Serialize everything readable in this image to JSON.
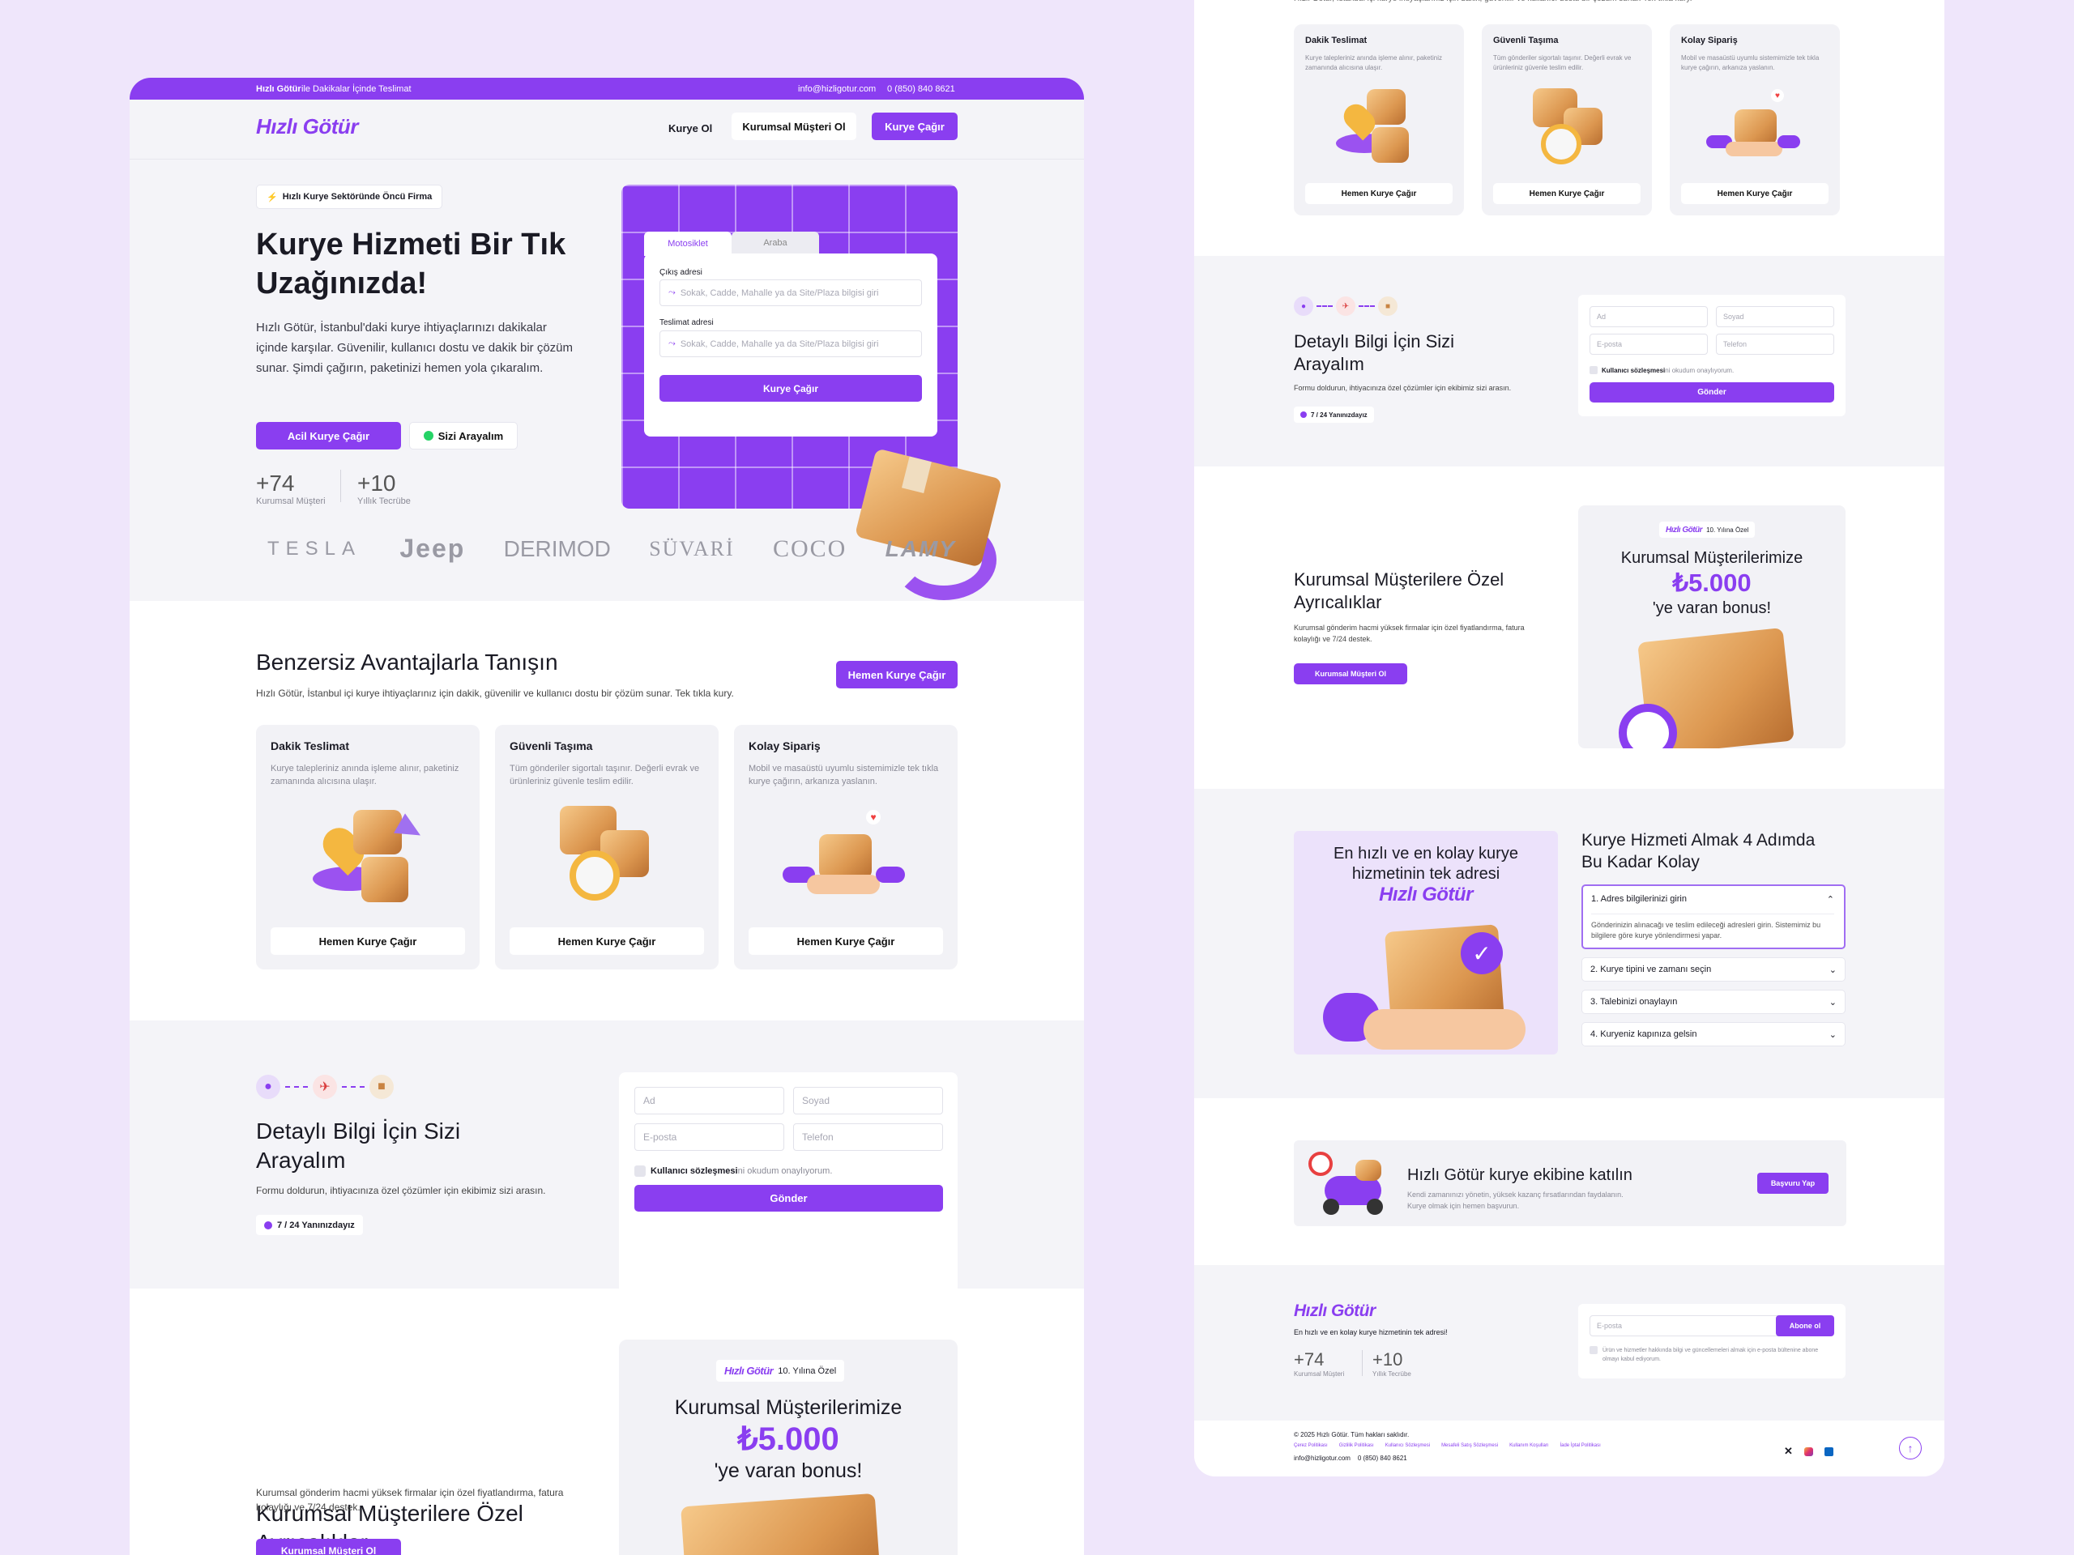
{
  "topbar": {
    "brand": "Hızlı Götür",
    "tagline": "ile Dakikalar İçinde Teslimat",
    "email": "info@hizligotur.com",
    "phone": "0 (850) 840 8621"
  },
  "nav": {
    "logo": "Hızlı Götür",
    "kurye_ol": "Kurye Ol",
    "kurumsal": "Kurumsal Müşteri Ol",
    "cta": "Kurye Çağır"
  },
  "hero": {
    "badge": "Hızlı Kurye Sektöründe Öncü Firma",
    "title_line1": "Kurye Hizmeti Bir Tık",
    "title_line2": "Uzağınızda!",
    "desc": "Hızlı Götür, İstanbul'daki kurye ihtiyaçlarınızı dakikalar içinde karşılar. Güvenilir, kullanıcı dostu ve dakik bir çözüm sunar. Şimdi çağırın, paketinizi hemen yola çıkaralım.",
    "btn_primary": "Acil Kurye Çağır",
    "btn_secondary": "Sizi Arayalım",
    "stat1_value": "+74",
    "stat1_label": "Kurumsal Müşteri",
    "stat2_value": "+10",
    "stat2_label": "Yıllık Tecrübe"
  },
  "form": {
    "tab1": "Motosiklet",
    "tab2": "Araba",
    "pickup_label": "Çıkış adresi",
    "pickup_placeholder": "Sokak, Cadde, Mahalle ya da Site/Plaza bilgisi giri",
    "delivery_label": "Teslimat adresi",
    "delivery_placeholder": "Sokak, Cadde, Mahalle ya da Site/Plaza bilgisi giri",
    "submit": "Kurye Çağır"
  },
  "brands": [
    "TESLA",
    "Jeep",
    "DERIMOD",
    "SÜVARİ",
    "COCO",
    "LAMY"
  ],
  "advantages": {
    "title": "Benzersiz Avantajlarla Tanışın",
    "desc": "Hızlı Götür, İstanbul içi kurye ihtiyaçlarınız için dakik, güvenilir ve kullanıcı dostu bir çözüm sunar. Tek tıkla kury.",
    "cta": "Hemen Kurye Çağır",
    "cards": [
      {
        "title": "Dakik Teslimat",
        "desc": "Kurye talepleriniz anında işleme alınır, paketiniz zamanında alıcısına ulaşır.",
        "btn": "Hemen Kurye Çağır"
      },
      {
        "title": "Güvenli Taşıma",
        "desc": "Tüm gönderiler sigortalı taşınır. Değerli evrak ve ürünleriniz güvenle teslim edilir.",
        "btn": "Hemen Kurye Çağır"
      },
      {
        "title": "Kolay Sipariş",
        "desc": "Mobil ve masaüstü uyumlu sistemimizle tek tıkla kurye çağırın, arkanıza yaslanın.",
        "btn": "Hemen Kurye Çağır"
      }
    ]
  },
  "contact": {
    "title_line1": "Detaylı Bilgi İçin Sizi",
    "title_line2": "Arayalım",
    "desc": "Formu doldurun, ihtiyacınıza özel çözümler için ekibimiz sizi arasın.",
    "badge": "7 / 24 Yanınızdayız",
    "ad": "Ad",
    "soyad": "Soyad",
    "eposta": "E-posta",
    "telefon": "Telefon",
    "agreement_bold": "Kullanıcı sözleşmesi",
    "agreement_rest": "ni okudum onaylıyorum.",
    "submit": "Gönder"
  },
  "corporate": {
    "title_line1": "Kurumsal Müşterilere Özel",
    "title_line2": "Ayrıcalıklar",
    "desc": "Kurumsal gönderim hacmi yüksek firmalar için özel fiyatlandırma, fatura kolaylığı ve 7/24 destek.",
    "btn": "Kurumsal Müşteri Ol",
    "promo_logo": "Hızlı Götür",
    "promo_badge": "10. Yılına Özel",
    "promo_line1": "Kurumsal Müşterilerimize",
    "promo_amount": "₺5.000",
    "promo_line2": "'ye varan bonus!"
  },
  "steps": {
    "banner_line1": "En hızlı ve en kolay kurye",
    "banner_line2": "hizmetinin tek adresi",
    "banner_logo": "Hızlı Götür",
    "title_line1": "Kurye Hizmeti Almak 4 Adımda",
    "title_line2": "Bu Kadar Kolay",
    "items": [
      {
        "label": "1. Adres bilgilerinizi girin",
        "desc": "Gönderinizin alınacağı ve teslim edileceği adresleri girin. Sistemimiz bu bilgilere göre kurye yönlendirmesi yapar."
      },
      {
        "label": "2. Kurye tipini ve zamanı seçin"
      },
      {
        "label": "3. Talebinizi onaylayın"
      },
      {
        "label": "4. Kuryeniz kapınıza gelsin"
      }
    ]
  },
  "join": {
    "title": "Hızlı Götür kurye ekibine katılın",
    "desc_line1": "Kendi zamanınızı yönetin, yüksek kazanç fırsatlarından faydalanın.",
    "desc_line2": "Kurye olmak için hemen başvurun.",
    "btn": "Başvuru Yap"
  },
  "footer": {
    "logo": "Hızlı Götür",
    "tagline": "En hızlı ve en kolay kurye hizmetinin tek adresi!",
    "stat1_value": "+74",
    "stat1_label": "Kurumsal Müşteri",
    "stat2_value": "+10",
    "stat2_label": "Yıllık Tecrübe",
    "email_placeholder": "E-posta",
    "subscribe": "Abone ol",
    "consent": "Ürün ve hizmetler hakkında bilgi ve güncellemeleri almak için e-posta bültenine abone olmayı kabul ediyorum.",
    "copyright": "© 2025 Hızlı Götür. Tüm hakları saklıdır.",
    "links": [
      "Çerez Politikası",
      "Gizlilik Politikası",
      "Kullanıcı Sözleşmesi",
      "Mesafeli Satış Sözleşmesi",
      "Kullanım Koşulları",
      "İade İptal Politikası"
    ],
    "contact": "info@hizligotur.com    0 (850) 840 8621"
  },
  "colors": {
    "accent": "#8a3ef0",
    "page_bg": "#efe6fb",
    "panel": "#f4f4f8"
  }
}
